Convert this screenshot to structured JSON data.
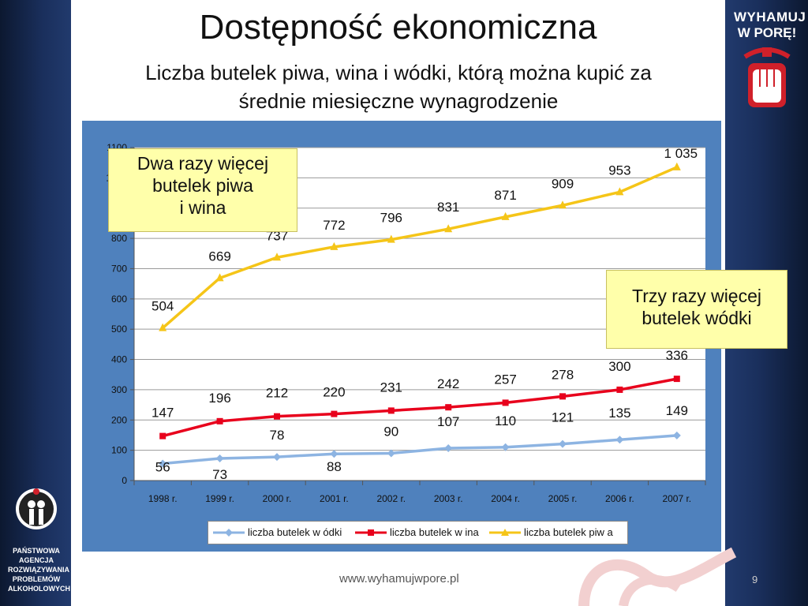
{
  "slide": {
    "title": "Dostępność ekonomiczna",
    "subtitle_line1": "Liczba butelek piwa, wina i wódki, którą można kupić za",
    "subtitle_line2": "średnie miesięczne wynagrodzenie",
    "callout_top_line1": "Dwa razy więcej",
    "callout_top_line2": "butelek piwa",
    "callout_top_line3": "i wina",
    "callout_right_line1": "Trzy razy więcej",
    "callout_right_line2": "butelek wódki",
    "footer_url": "www.wyhamujwpore.pl",
    "page_number": "9",
    "logo_right_line1": "WYHAMUJ",
    "logo_right_line2": "W PORĘ!",
    "logo_left_lines": [
      "PAŃSTWOWA",
      "AGENCJA",
      "ROZWIĄZYWANIA",
      "PROBLEMÓW",
      "ALKOHOLOWYCH"
    ],
    "colors": {
      "vodka": "#8db4e2",
      "wine": "#e8001c",
      "beer": "#f5c518",
      "panel": "#4f81bd",
      "callout": "#ffffaa"
    }
  },
  "chart_data": {
    "type": "line",
    "categories": [
      "1998 r.",
      "1999 r.",
      "2000 r.",
      "2001 r.",
      "2002 r.",
      "2003 r.",
      "2004 r.",
      "2005 r.",
      "2006 r.",
      "2007 r."
    ],
    "ylim": [
      0,
      1100
    ],
    "yticks": [
      "0",
      "100",
      "200",
      "300",
      "400",
      "500",
      "600",
      "700",
      "800",
      "900",
      "1000",
      "1100"
    ],
    "grid": true,
    "legend_position": "bottom",
    "series": [
      {
        "name": "liczba butelek w ódki",
        "color": "#8db4e2",
        "marker": "diamond",
        "values": [
          56,
          73,
          78,
          88,
          90,
          107,
          110,
          121,
          135,
          149
        ],
        "labels": [
          "56",
          "73",
          "78",
          "88",
          "90",
          "107",
          "110",
          "121",
          "135",
          "149"
        ]
      },
      {
        "name": "liczba butelek w ina",
        "color": "#e8001c",
        "marker": "square",
        "values": [
          147,
          196,
          212,
          220,
          231,
          242,
          257,
          278,
          300,
          336
        ],
        "labels": [
          "147",
          "196",
          "212",
          "220",
          "231",
          "242",
          "257",
          "278",
          "300",
          "336"
        ]
      },
      {
        "name": "liczba butelek piw a",
        "color": "#f5c518",
        "marker": "triangle",
        "values": [
          504,
          669,
          737,
          772,
          796,
          831,
          871,
          909,
          953,
          1035
        ],
        "labels": [
          "504",
          "669",
          "737",
          "772",
          "796",
          "831",
          "871",
          "909",
          "953",
          "1 035"
        ]
      }
    ]
  }
}
